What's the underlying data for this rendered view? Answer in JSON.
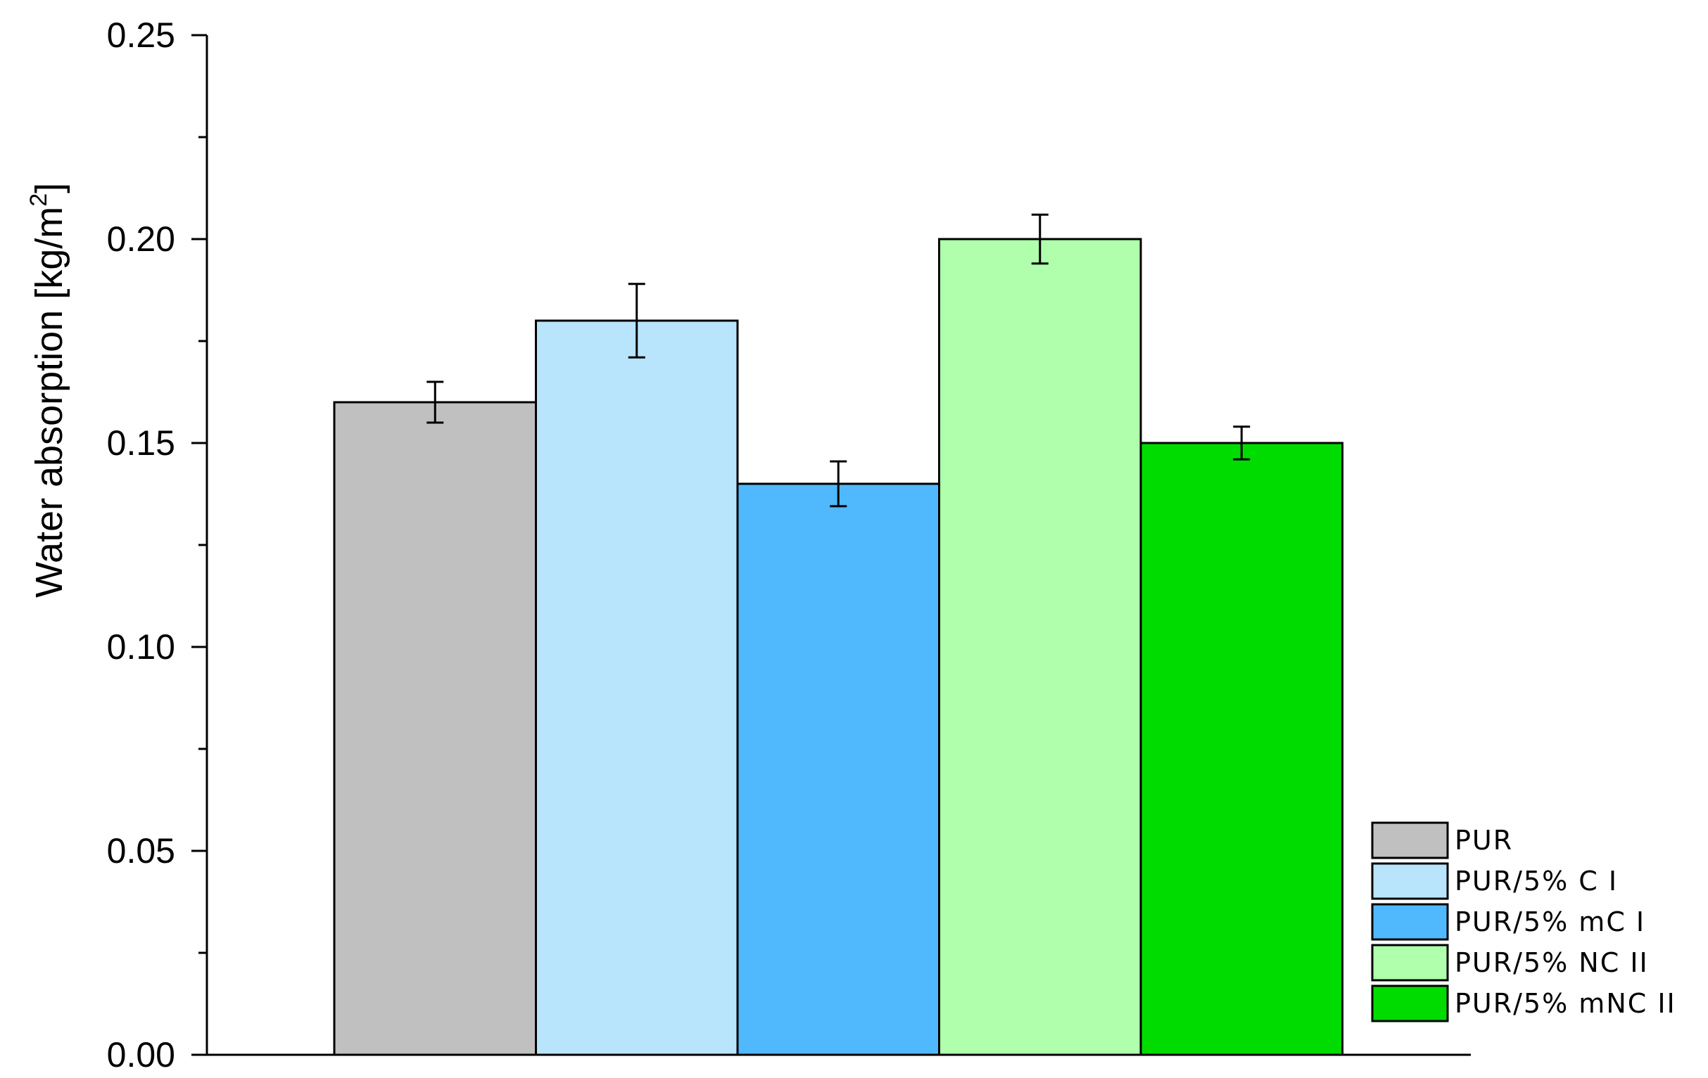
{
  "chart_data": {
    "type": "bar",
    "title": "",
    "xlabel": "",
    "ylabel": "Water absorption [kg/m",
    "ylabel_superscript": "2",
    "ylabel_suffix": "]",
    "ylim": [
      0,
      0.25
    ],
    "yticks": [
      "0.00",
      "0.05",
      "0.10",
      "0.15",
      "0.20",
      "0.25"
    ],
    "ytick_values": [
      0,
      0.05,
      0.1,
      0.15,
      0.2,
      0.25
    ],
    "grid": false,
    "legend_position": "bottom-right",
    "bars": [
      {
        "name": "PUR",
        "value": 0.16,
        "error": 0.005,
        "color": "#c0c0c0"
      },
      {
        "name": "PUR/5% C I",
        "value": 0.18,
        "error": 0.009,
        "color": "#b8e4fc"
      },
      {
        "name": "PUR/5% mC I",
        "value": 0.14,
        "error": 0.0055,
        "color": "#50b8fc"
      },
      {
        "name": "PUR/5% NC II",
        "value": 0.2,
        "error": 0.006,
        "color": "#b0ffac"
      },
      {
        "name": "PUR/5% mNC II",
        "value": 0.15,
        "error": 0.004,
        "color": "#00dc00"
      }
    ]
  }
}
